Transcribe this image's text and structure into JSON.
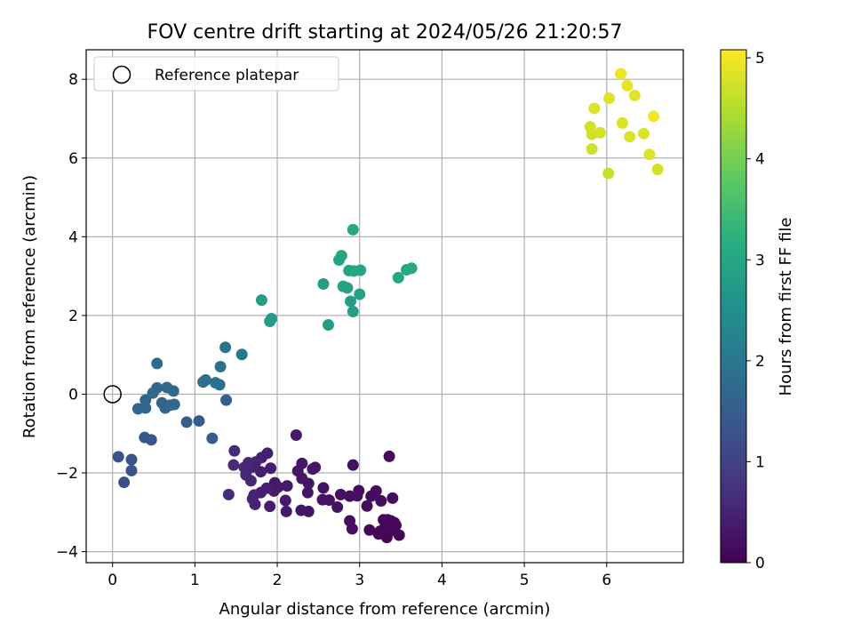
{
  "chart_data": {
    "type": "scatter",
    "title": "FOV centre drift starting at 2024/05/26 21:20:57",
    "xlabel": "Angular distance from reference (arcmin)",
    "ylabel": "Rotation from reference (arcmin)",
    "colorbar_label": "Hours from first FF file",
    "xlim": [
      -0.32,
      6.93
    ],
    "ylim": [
      -4.28,
      8.75
    ],
    "clim": [
      0,
      5.08
    ],
    "xticks": [
      0,
      1,
      2,
      3,
      4,
      5,
      6
    ],
    "yticks": [
      -4,
      -2,
      0,
      2,
      4,
      6,
      8
    ],
    "xtick_labels": [
      "0",
      "1",
      "2",
      "3",
      "4",
      "5",
      "6"
    ],
    "ytick_labels": [
      "−4",
      "−2",
      "0",
      "2",
      "4",
      "6",
      "8"
    ],
    "cbar_ticks": [
      0,
      1,
      2,
      3,
      4,
      5
    ],
    "cbar_tick_labels": [
      "0",
      "1",
      "2",
      "3",
      "4",
      "5"
    ],
    "grid": true,
    "legend": {
      "location": "upper-left",
      "entries": [
        "Reference platepar"
      ]
    },
    "reference_point": {
      "x": 0,
      "y": 0
    },
    "colormap": "viridis",
    "points": [
      {
        "x": 3.36,
        "y": -1.58,
        "t": 0.15
      },
      {
        "x": 3.34,
        "y": -3.19,
        "t": 0.08
      },
      {
        "x": 3.38,
        "y": -3.22,
        "t": 0.08
      },
      {
        "x": 3.31,
        "y": -3.37,
        "t": 0.08
      },
      {
        "x": 3.36,
        "y": -3.38,
        "t": 0.08
      },
      {
        "x": 3.29,
        "y": -3.19,
        "t": 0.08
      },
      {
        "x": 3.44,
        "y": -3.33,
        "t": 0.08
      },
      {
        "x": 3.42,
        "y": -3.26,
        "t": 0.08
      },
      {
        "x": 3.48,
        "y": -3.58,
        "t": 0.05
      },
      {
        "x": 3.33,
        "y": -3.64,
        "t": 0.05
      },
      {
        "x": 3.23,
        "y": -3.55,
        "t": 0.05
      },
      {
        "x": 3.12,
        "y": -3.45,
        "t": 0.08
      },
      {
        "x": 3.25,
        "y": -3.48,
        "t": 0.08
      },
      {
        "x": 3.38,
        "y": -3.47,
        "t": 0.08
      },
      {
        "x": 3.4,
        "y": -2.64,
        "t": 0.15
      },
      {
        "x": 3.26,
        "y": -2.71,
        "t": 0.15
      },
      {
        "x": 3.2,
        "y": -2.46,
        "t": 0.15
      },
      {
        "x": 3.14,
        "y": -2.59,
        "t": 0.15
      },
      {
        "x": 3.09,
        "y": -2.84,
        "t": 0.15
      },
      {
        "x": 2.99,
        "y": -2.45,
        "t": 0.2
      },
      {
        "x": 2.97,
        "y": -2.58,
        "t": 0.2
      },
      {
        "x": 2.92,
        "y": -1.8,
        "t": 0.2
      },
      {
        "x": 2.88,
        "y": -2.59,
        "t": 0.2
      },
      {
        "x": 2.88,
        "y": -3.22,
        "t": 0.2
      },
      {
        "x": 2.91,
        "y": -3.42,
        "t": 0.2
      },
      {
        "x": 2.77,
        "y": -2.55,
        "t": 0.25
      },
      {
        "x": 2.73,
        "y": -2.87,
        "t": 0.25
      },
      {
        "x": 2.63,
        "y": -2.69,
        "t": 0.25
      },
      {
        "x": 2.56,
        "y": -2.38,
        "t": 0.25
      },
      {
        "x": 2.55,
        "y": -2.68,
        "t": 0.25
      },
      {
        "x": 2.46,
        "y": -1.86,
        "t": 0.3
      },
      {
        "x": 2.43,
        "y": -1.9,
        "t": 0.3
      },
      {
        "x": 2.38,
        "y": -2.27,
        "t": 0.3
      },
      {
        "x": 2.37,
        "y": -2.5,
        "t": 0.3
      },
      {
        "x": 2.38,
        "y": -2.98,
        "t": 0.3
      },
      {
        "x": 2.3,
        "y": -1.76,
        "t": 0.3
      },
      {
        "x": 2.3,
        "y": -2.14,
        "t": 0.3
      },
      {
        "x": 2.29,
        "y": -2.95,
        "t": 0.3
      },
      {
        "x": 2.25,
        "y": -1.95,
        "t": 0.3
      },
      {
        "x": 2.23,
        "y": -1.04,
        "t": 0.35
      },
      {
        "x": 2.12,
        "y": -2.33,
        "t": 0.35
      },
      {
        "x": 2.1,
        "y": -2.7,
        "t": 0.35
      },
      {
        "x": 2.11,
        "y": -2.98,
        "t": 0.35
      },
      {
        "x": 2.01,
        "y": -2.36,
        "t": 0.35
      },
      {
        "x": 1.97,
        "y": -2.25,
        "t": 0.35
      },
      {
        "x": 1.96,
        "y": -2.46,
        "t": 0.35
      },
      {
        "x": 1.92,
        "y": -1.88,
        "t": 0.4
      },
      {
        "x": 1.91,
        "y": -2.85,
        "t": 0.4
      },
      {
        "x": 1.88,
        "y": -1.5,
        "t": 0.45
      },
      {
        "x": 1.87,
        "y": -2.39,
        "t": 0.45
      },
      {
        "x": 1.81,
        "y": -1.61,
        "t": 0.45
      },
      {
        "x": 1.8,
        "y": -1.97,
        "t": 0.45
      },
      {
        "x": 1.8,
        "y": -2.5,
        "t": 0.45
      },
      {
        "x": 1.74,
        "y": -1.72,
        "t": 0.5
      },
      {
        "x": 1.73,
        "y": -2.8,
        "t": 0.5
      },
      {
        "x": 1.72,
        "y": -2.56,
        "t": 0.5
      },
      {
        "x": 1.7,
        "y": -1.85,
        "t": 0.5
      },
      {
        "x": 1.7,
        "y": -2.66,
        "t": 0.5
      },
      {
        "x": 1.68,
        "y": -2.2,
        "t": 0.55
      },
      {
        "x": 1.65,
        "y": -1.74,
        "t": 0.55
      },
      {
        "x": 1.62,
        "y": -2.05,
        "t": 0.55
      },
      {
        "x": 1.6,
        "y": -1.86,
        "t": 0.55
      },
      {
        "x": 1.48,
        "y": -1.44,
        "t": 0.6
      },
      {
        "x": 1.47,
        "y": -1.8,
        "t": 0.6
      },
      {
        "x": 1.41,
        "y": -2.55,
        "t": 0.65
      },
      {
        "x": 1.38,
        "y": -0.15,
        "t": 1.55
      },
      {
        "x": 1.21,
        "y": -1.12,
        "t": 1.45
      },
      {
        "x": 1.05,
        "y": -0.68,
        "t": 1.45
      },
      {
        "x": 0.9,
        "y": -0.71,
        "t": 1.5
      },
      {
        "x": 0.47,
        "y": -1.16,
        "t": 1.35
      },
      {
        "x": 0.39,
        "y": -1.1,
        "t": 1.35
      },
      {
        "x": 0.23,
        "y": -1.66,
        "t": 1.3
      },
      {
        "x": 0.23,
        "y": -1.94,
        "t": 1.3
      },
      {
        "x": 0.07,
        "y": -1.59,
        "t": 1.3
      },
      {
        "x": 0.14,
        "y": -2.24,
        "t": 1.25
      },
      {
        "x": 0.54,
        "y": 0.78,
        "t": 1.75
      },
      {
        "x": 0.54,
        "y": 0.16,
        "t": 1.7
      },
      {
        "x": 0.49,
        "y": 0.03,
        "t": 1.7
      },
      {
        "x": 0.4,
        "y": -0.15,
        "t": 1.65
      },
      {
        "x": 0.4,
        "y": -0.35,
        "t": 1.65
      },
      {
        "x": 0.31,
        "y": -0.37,
        "t": 1.65
      },
      {
        "x": 0.6,
        "y": -0.22,
        "t": 1.65
      },
      {
        "x": 0.64,
        "y": -0.35,
        "t": 1.65
      },
      {
        "x": 0.66,
        "y": 0.17,
        "t": 1.7
      },
      {
        "x": 0.74,
        "y": 0.08,
        "t": 1.7
      },
      {
        "x": 0.75,
        "y": -0.26,
        "t": 1.7
      },
      {
        "x": 0.7,
        "y": -0.28,
        "t": 1.7
      },
      {
        "x": 1.1,
        "y": 0.31,
        "t": 1.85
      },
      {
        "x": 1.13,
        "y": 0.36,
        "t": 1.85
      },
      {
        "x": 1.25,
        "y": 0.29,
        "t": 1.85
      },
      {
        "x": 1.3,
        "y": 0.24,
        "t": 1.85
      },
      {
        "x": 1.31,
        "y": 0.7,
        "t": 1.9
      },
      {
        "x": 1.37,
        "y": 1.19,
        "t": 1.95
      },
      {
        "x": 1.57,
        "y": 1.01,
        "t": 2.0
      },
      {
        "x": 1.81,
        "y": 2.39,
        "t": 2.8
      },
      {
        "x": 1.91,
        "y": 1.85,
        "t": 2.75
      },
      {
        "x": 1.93,
        "y": 1.92,
        "t": 2.75
      },
      {
        "x": 2.56,
        "y": 2.8,
        "t": 2.85
      },
      {
        "x": 2.62,
        "y": 1.76,
        "t": 2.8
      },
      {
        "x": 2.75,
        "y": 3.41,
        "t": 2.95
      },
      {
        "x": 2.78,
        "y": 3.52,
        "t": 2.95
      },
      {
        "x": 2.8,
        "y": 2.74,
        "t": 2.9
      },
      {
        "x": 2.85,
        "y": 2.7,
        "t": 2.9
      },
      {
        "x": 2.87,
        "y": 3.14,
        "t": 2.95
      },
      {
        "x": 2.89,
        "y": 2.36,
        "t": 2.85
      },
      {
        "x": 2.92,
        "y": 2.1,
        "t": 2.85
      },
      {
        "x": 2.93,
        "y": 3.13,
        "t": 2.95
      },
      {
        "x": 2.92,
        "y": 4.18,
        "t": 3.05
      },
      {
        "x": 3.0,
        "y": 2.54,
        "t": 2.9
      },
      {
        "x": 3.01,
        "y": 3.15,
        "t": 2.95
      },
      {
        "x": 3.47,
        "y": 2.96,
        "t": 3.0
      },
      {
        "x": 3.57,
        "y": 3.16,
        "t": 3.05
      },
      {
        "x": 3.63,
        "y": 3.2,
        "t": 3.05
      },
      {
        "x": 5.8,
        "y": 6.79,
        "t": 4.75
      },
      {
        "x": 5.82,
        "y": 6.6,
        "t": 4.75
      },
      {
        "x": 5.82,
        "y": 6.23,
        "t": 4.7
      },
      {
        "x": 5.85,
        "y": 7.26,
        "t": 4.8
      },
      {
        "x": 5.92,
        "y": 6.64,
        "t": 4.75
      },
      {
        "x": 6.02,
        "y": 5.61,
        "t": 4.65
      },
      {
        "x": 6.03,
        "y": 7.52,
        "t": 4.85
      },
      {
        "x": 6.17,
        "y": 8.14,
        "t": 4.95
      },
      {
        "x": 6.19,
        "y": 6.89,
        "t": 4.8
      },
      {
        "x": 6.25,
        "y": 7.84,
        "t": 4.9
      },
      {
        "x": 6.28,
        "y": 6.54,
        "t": 4.8
      },
      {
        "x": 6.34,
        "y": 7.59,
        "t": 4.85
      },
      {
        "x": 6.45,
        "y": 6.62,
        "t": 4.8
      },
      {
        "x": 6.52,
        "y": 6.09,
        "t": 4.8
      },
      {
        "x": 6.57,
        "y": 7.06,
        "t": 5.0
      },
      {
        "x": 6.62,
        "y": 5.71,
        "t": 4.75
      }
    ]
  }
}
